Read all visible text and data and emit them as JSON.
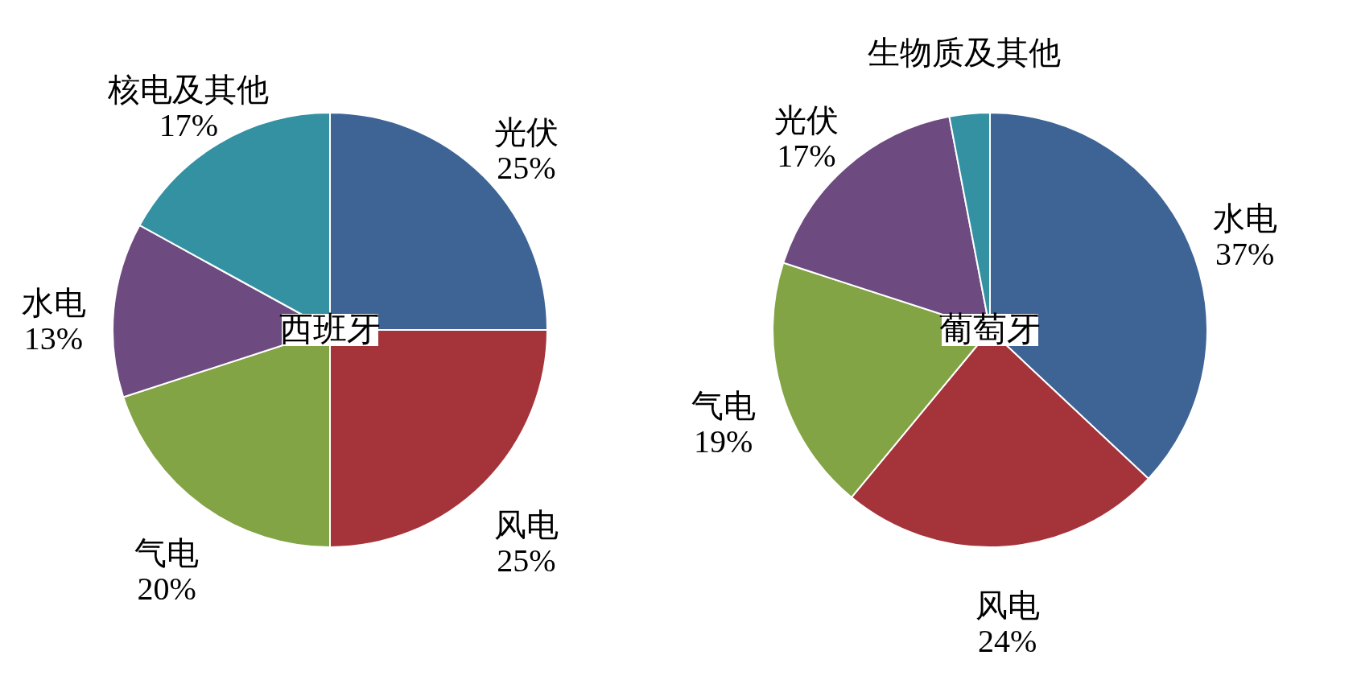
{
  "chart_data": [
    {
      "type": "pie",
      "title": "西班牙",
      "categories": [
        "光伏",
        "风电",
        "气电",
        "水电",
        "核电及其他"
      ],
      "values": [
        25,
        25,
        20,
        13,
        17
      ],
      "colors": [
        "#3e6496",
        "#a5333a",
        "#82a444",
        "#6d4a7f",
        "#3391a2"
      ],
      "value_labels": [
        "25%",
        "25%",
        "20%",
        "13%",
        "17%"
      ]
    },
    {
      "type": "pie",
      "title": "葡萄牙",
      "categories": [
        "水电",
        "风电",
        "气电",
        "光伏",
        "生物质及其他"
      ],
      "values": [
        37,
        24,
        19,
        17,
        3
      ],
      "colors": [
        "#3e6496",
        "#a5333a",
        "#82a444",
        "#6d4a7f",
        "#3391a2"
      ],
      "value_labels": [
        "37%",
        "24%",
        "19%",
        "17%",
        null
      ]
    }
  ]
}
